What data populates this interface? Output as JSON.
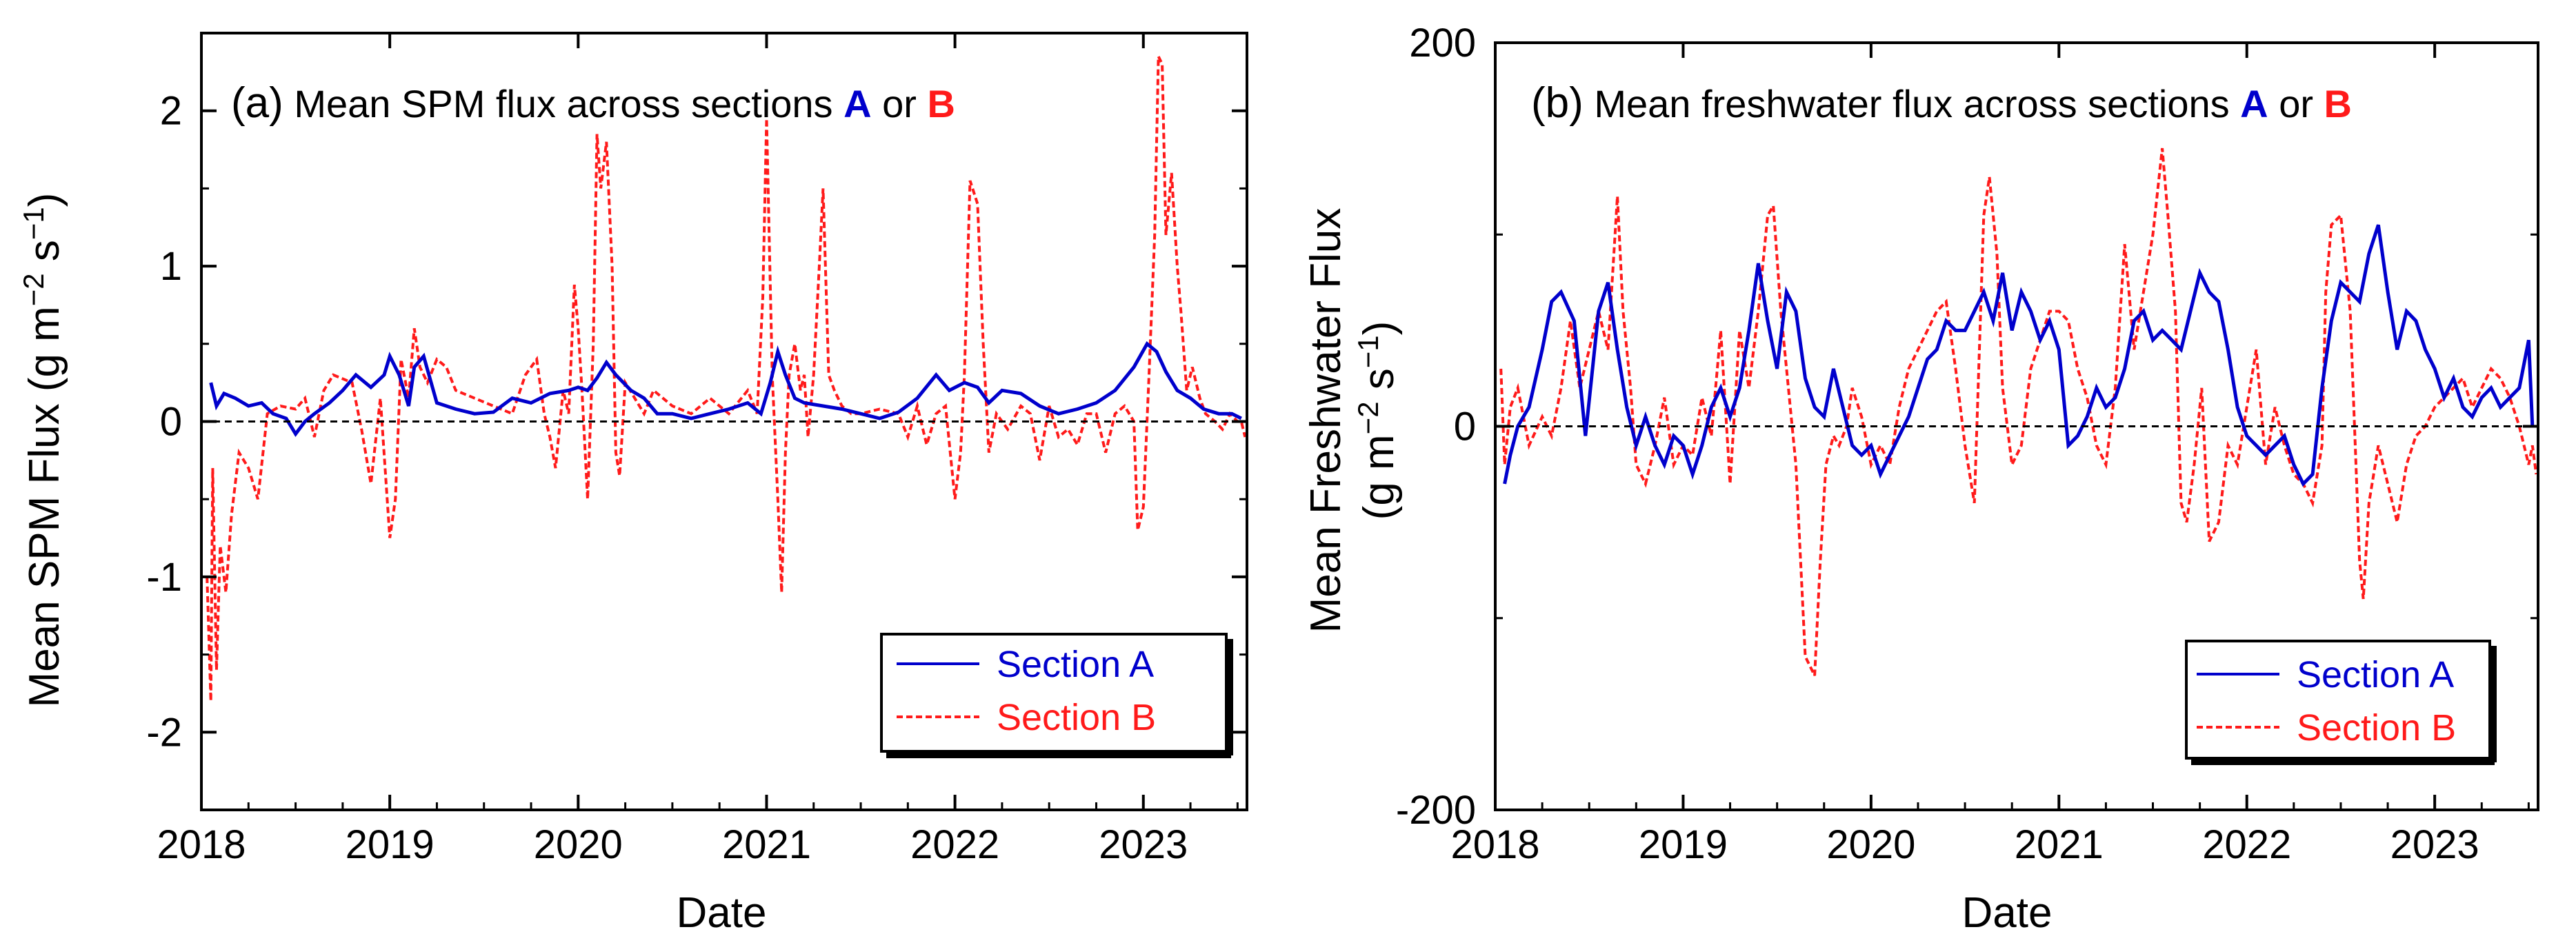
{
  "colors": {
    "section_a": "#0000cc",
    "section_b": "#ff1a1a",
    "axis": "#000000",
    "zero_line": "#000000"
  },
  "chart_data": [
    {
      "type": "line",
      "panel": "(a)",
      "title": "Mean SPM flux across sections",
      "title_a": "A",
      "title_or": "or",
      "title_b": "B",
      "xlabel": "Date",
      "ylabel": "Mean SPM Flux (g m",
      "ylabel_sup1": "−2",
      "ylabel_mid": " s",
      "ylabel_sup2": "−1",
      "ylabel_end": ")",
      "xlim": [
        2018.0,
        2023.55
      ],
      "ylim": [
        -2.5,
        2.5
      ],
      "xticks": [
        2018,
        2019,
        2020,
        2021,
        2022,
        2023
      ],
      "xtick_labels": [
        "2018",
        "2019",
        "2020",
        "2021",
        "2022",
        "2023"
      ],
      "yticks": [
        -2,
        -1,
        0,
        1,
        2
      ],
      "ytick_labels": [
        "-2",
        "-1",
        "0",
        "1",
        "2"
      ],
      "legend_position": "bottom-right",
      "series": [
        {
          "name": "Section A",
          "style": "solid",
          "x": [
            2018.05,
            2018.08,
            2018.12,
            2018.18,
            2018.25,
            2018.32,
            2018.38,
            2018.45,
            2018.5,
            2018.55,
            2018.6,
            2018.68,
            2018.75,
            2018.82,
            2018.9,
            2018.97,
            2019.0,
            2019.05,
            2019.1,
            2019.13,
            2019.18,
            2019.25,
            2019.35,
            2019.45,
            2019.55,
            2019.65,
            2019.75,
            2019.85,
            2019.95,
            2020.0,
            2020.05,
            2020.1,
            2020.15,
            2020.2,
            2020.28,
            2020.35,
            2020.42,
            2020.5,
            2020.6,
            2020.7,
            2020.8,
            2020.9,
            2020.97,
            2021.02,
            2021.06,
            2021.1,
            2021.15,
            2021.2,
            2021.3,
            2021.4,
            2021.5,
            2021.6,
            2021.7,
            2021.8,
            2021.9,
            2021.97,
            2022.05,
            2022.12,
            2022.18,
            2022.25,
            2022.35,
            2022.45,
            2022.55,
            2022.65,
            2022.75,
            2022.85,
            2022.95,
            2023.02,
            2023.07,
            2023.12,
            2023.18,
            2023.25,
            2023.32,
            2023.4,
            2023.47,
            2023.52
          ],
          "y": [
            0.25,
            0.1,
            0.18,
            0.15,
            0.1,
            0.12,
            0.05,
            0.02,
            -0.08,
            0.0,
            0.05,
            0.12,
            0.2,
            0.3,
            0.22,
            0.3,
            0.42,
            0.3,
            0.1,
            0.35,
            0.42,
            0.12,
            0.08,
            0.05,
            0.06,
            0.15,
            0.12,
            0.18,
            0.2,
            0.22,
            0.2,
            0.28,
            0.38,
            0.3,
            0.2,
            0.15,
            0.05,
            0.05,
            0.02,
            0.05,
            0.08,
            0.12,
            0.05,
            0.25,
            0.45,
            0.3,
            0.15,
            0.12,
            0.1,
            0.08,
            0.05,
            0.02,
            0.06,
            0.15,
            0.3,
            0.2,
            0.25,
            0.22,
            0.12,
            0.2,
            0.18,
            0.1,
            0.05,
            0.08,
            0.12,
            0.2,
            0.35,
            0.5,
            0.45,
            0.32,
            0.2,
            0.15,
            0.08,
            0.05,
            0.05,
            0.02
          ]
        },
        {
          "name": "Section B",
          "style": "dashed",
          "x": [
            2018.03,
            2018.05,
            2018.06,
            2018.08,
            2018.1,
            2018.13,
            2018.16,
            2018.2,
            2018.25,
            2018.3,
            2018.35,
            2018.42,
            2018.5,
            2018.55,
            2018.6,
            2018.65,
            2018.7,
            2018.8,
            2018.85,
            2018.9,
            2018.95,
            2019.0,
            2019.03,
            2019.06,
            2019.1,
            2019.13,
            2019.16,
            2019.2,
            2019.25,
            2019.3,
            2019.35,
            2019.45,
            2019.55,
            2019.65,
            2019.72,
            2019.78,
            2019.82,
            2019.85,
            2019.88,
            2019.92,
            2019.95,
            2019.98,
            2020.0,
            2020.02,
            2020.05,
            2020.08,
            2020.1,
            2020.12,
            2020.15,
            2020.18,
            2020.2,
            2020.22,
            2020.25,
            2020.3,
            2020.35,
            2020.4,
            2020.5,
            2020.6,
            2020.7,
            2020.8,
            2020.9,
            2020.95,
            2020.98,
            2021.0,
            2021.03,
            2021.06,
            2021.08,
            2021.1,
            2021.12,
            2021.15,
            2021.18,
            2021.2,
            2021.22,
            2021.25,
            2021.28,
            2021.3,
            2021.33,
            2021.36,
            2021.4,
            2021.45,
            2021.5,
            2021.6,
            2021.7,
            2021.75,
            2021.8,
            2021.85,
            2021.9,
            2021.95,
            2022.0,
            2022.03,
            2022.05,
            2022.08,
            2022.12,
            2022.15,
            2022.18,
            2022.22,
            2022.28,
            2022.35,
            2022.4,
            2022.45,
            2022.5,
            2022.55,
            2022.6,
            2022.65,
            2022.7,
            2022.75,
            2022.8,
            2022.85,
            2022.9,
            2022.95,
            2022.97,
            2023.0,
            2023.03,
            2023.06,
            2023.08,
            2023.1,
            2023.12,
            2023.15,
            2023.18,
            2023.2,
            2023.23,
            2023.26,
            2023.3,
            2023.33,
            2023.38,
            2023.42,
            2023.46,
            2023.5,
            2023.52,
            2023.54
          ],
          "y": [
            -1.0,
            -1.8,
            -0.3,
            -1.6,
            -0.8,
            -1.1,
            -0.6,
            -0.2,
            -0.3,
            -0.5,
            0.05,
            0.1,
            0.08,
            0.15,
            -0.1,
            0.2,
            0.3,
            0.25,
            -0.05,
            -0.4,
            0.15,
            -0.75,
            -0.5,
            0.4,
            0.15,
            0.6,
            0.35,
            0.25,
            0.4,
            0.35,
            0.2,
            0.15,
            0.1,
            0.05,
            0.3,
            0.4,
            0.05,
            -0.1,
            -0.3,
            0.2,
            0.05,
            0.88,
            0.6,
            0.2,
            -0.5,
            0.5,
            1.85,
            1.5,
            1.8,
            1.0,
            -0.2,
            -0.35,
            0.25,
            0.15,
            0.05,
            0.2,
            0.1,
            0.05,
            0.15,
            0.05,
            0.2,
            0.05,
            0.8,
            1.95,
            0.3,
            -0.5,
            -1.1,
            -0.2,
            0.3,
            0.5,
            0.2,
            0.3,
            -0.1,
            0.3,
            1.0,
            1.5,
            0.3,
            0.2,
            0.1,
            0.05,
            0.05,
            0.08,
            0.05,
            -0.1,
            0.1,
            -0.15,
            0.05,
            0.1,
            -0.5,
            -0.2,
            0.3,
            1.55,
            1.4,
            0.5,
            -0.2,
            0.05,
            -0.05,
            0.1,
            0.05,
            -0.25,
            0.1,
            -0.1,
            -0.05,
            -0.15,
            0.05,
            0.05,
            -0.2,
            0.05,
            0.1,
            0.0,
            -0.7,
            -0.55,
            0.3,
            1.2,
            2.35,
            2.3,
            1.2,
            1.6,
            1.0,
            0.7,
            0.2,
            0.35,
            0.15,
            0.05,
            0.0,
            -0.05,
            0.05,
            0.0,
            0.0,
            -0.1
          ]
        }
      ]
    },
    {
      "type": "line",
      "panel": "(b)",
      "title": "Mean freshwater flux across sections",
      "title_a": "A",
      "title_or": "or",
      "title_b": "B",
      "xlabel": "Date",
      "ylabel_line1": "Mean Freshwater Flux",
      "ylabel_line2": "(g m",
      "ylabel_sup1": "−2",
      "ylabel_mid": " s",
      "ylabel_sup2": "−1",
      "ylabel_end": ")",
      "xlim": [
        2018.0,
        2023.55
      ],
      "ylim": [
        -200,
        200
      ],
      "xticks": [
        2018,
        2019,
        2020,
        2021,
        2022,
        2023
      ],
      "xtick_labels": [
        "2018",
        "2019",
        "2020",
        "2021",
        "2022",
        "2023"
      ],
      "yticks": [
        -200,
        0,
        200
      ],
      "ytick_labels": [
        "-200",
        "0",
        "200"
      ],
      "legend_position": "bottom-right",
      "series": [
        {
          "name": "Section A",
          "style": "solid",
          "x": [
            2018.05,
            2018.08,
            2018.12,
            2018.18,
            2018.25,
            2018.3,
            2018.35,
            2018.42,
            2018.48,
            2018.55,
            2018.6,
            2018.65,
            2018.7,
            2018.75,
            2018.8,
            2018.85,
            2018.9,
            2018.95,
            2019.0,
            2019.05,
            2019.1,
            2019.15,
            2019.2,
            2019.25,
            2019.3,
            2019.35,
            2019.4,
            2019.45,
            2019.5,
            2019.55,
            2019.6,
            2019.65,
            2019.7,
            2019.75,
            2019.8,
            2019.85,
            2019.9,
            2019.95,
            2020.0,
            2020.05,
            2020.1,
            2020.15,
            2020.2,
            2020.25,
            2020.3,
            2020.35,
            2020.4,
            2020.45,
            2020.5,
            2020.55,
            2020.6,
            2020.65,
            2020.7,
            2020.75,
            2020.8,
            2020.85,
            2020.9,
            2020.95,
            2021.0,
            2021.05,
            2021.1,
            2021.15,
            2021.2,
            2021.25,
            2021.3,
            2021.35,
            2021.4,
            2021.45,
            2021.5,
            2021.55,
            2021.6,
            2021.65,
            2021.7,
            2021.75,
            2021.8,
            2021.85,
            2021.9,
            2021.95,
            2022.0,
            2022.05,
            2022.1,
            2022.15,
            2022.2,
            2022.25,
            2022.3,
            2022.35,
            2022.4,
            2022.45,
            2022.5,
            2022.55,
            2022.6,
            2022.65,
            2022.7,
            2022.75,
            2022.8,
            2022.85,
            2022.9,
            2022.95,
            2023.0,
            2023.05,
            2023.1,
            2023.15,
            2023.2,
            2023.25,
            2023.3,
            2023.35,
            2023.4,
            2023.45,
            2023.5,
            2023.52
          ],
          "y": [
            -30,
            -15,
            0,
            10,
            40,
            65,
            70,
            55,
            -5,
            60,
            75,
            40,
            10,
            -10,
            5,
            -10,
            -20,
            -5,
            -10,
            -25,
            -10,
            10,
            20,
            5,
            20,
            50,
            85,
            55,
            30,
            70,
            60,
            25,
            10,
            5,
            30,
            10,
            -10,
            -15,
            -10,
            -25,
            -15,
            -5,
            5,
            20,
            35,
            40,
            55,
            50,
            50,
            60,
            70,
            55,
            80,
            50,
            70,
            60,
            45,
            55,
            40,
            -10,
            -5,
            5,
            20,
            10,
            15,
            30,
            55,
            60,
            45,
            50,
            45,
            40,
            60,
            80,
            70,
            65,
            40,
            10,
            -5,
            -10,
            -15,
            -10,
            -5,
            -20,
            -30,
            -25,
            20,
            55,
            75,
            70,
            65,
            90,
            105,
            70,
            40,
            60,
            55,
            40,
            30,
            15,
            25,
            10,
            5,
            15,
            20,
            10,
            15,
            20,
            45,
            0
          ]
        },
        {
          "name": "Section B",
          "style": "dashed",
          "x": [
            2018.03,
            2018.05,
            2018.08,
            2018.12,
            2018.18,
            2018.25,
            2018.3,
            2018.35,
            2018.4,
            2018.45,
            2018.5,
            2018.55,
            2018.6,
            2018.65,
            2018.68,
            2018.72,
            2018.75,
            2018.8,
            2018.85,
            2018.9,
            2018.95,
            2019.0,
            2019.05,
            2019.1,
            2019.15,
            2019.2,
            2019.25,
            2019.3,
            2019.35,
            2019.4,
            2019.45,
            2019.48,
            2019.52,
            2019.55,
            2019.6,
            2019.65,
            2019.7,
            2019.73,
            2019.76,
            2019.8,
            2019.83,
            2019.87,
            2019.9,
            2019.95,
            2020.0,
            2020.05,
            2020.1,
            2020.15,
            2020.2,
            2020.25,
            2020.3,
            2020.35,
            2020.4,
            2020.45,
            2020.5,
            2020.55,
            2020.6,
            2020.63,
            2020.67,
            2020.7,
            2020.75,
            2020.8,
            2020.85,
            2020.9,
            2020.95,
            2021.0,
            2021.05,
            2021.1,
            2021.15,
            2021.2,
            2021.25,
            2021.3,
            2021.35,
            2021.4,
            2021.45,
            2021.5,
            2021.55,
            2021.58,
            2021.62,
            2021.65,
            2021.68,
            2021.72,
            2021.76,
            2021.8,
            2021.85,
            2021.9,
            2021.95,
            2022.0,
            2022.05,
            2022.1,
            2022.15,
            2022.2,
            2022.25,
            2022.3,
            2022.35,
            2022.4,
            2022.42,
            2022.45,
            2022.5,
            2022.55,
            2022.6,
            2022.62,
            2022.65,
            2022.7,
            2022.75,
            2022.8,
            2022.85,
            2022.9,
            2022.95,
            2023.0,
            2023.05,
            2023.1,
            2023.15,
            2023.2,
            2023.25,
            2023.3,
            2023.35,
            2023.4,
            2023.45,
            2023.5,
            2023.52,
            2023.54
          ],
          "y": [
            30,
            -20,
            10,
            20,
            -10,
            5,
            -5,
            20,
            55,
            20,
            40,
            60,
            40,
            120,
            60,
            20,
            -20,
            -30,
            -10,
            15,
            -20,
            -10,
            -15,
            15,
            -5,
            50,
            -30,
            50,
            20,
            60,
            110,
            115,
            60,
            30,
            -20,
            -120,
            -130,
            -70,
            -20,
            -5,
            -10,
            0,
            20,
            5,
            -20,
            -10,
            -20,
            10,
            30,
            40,
            50,
            60,
            65,
            30,
            -10,
            -40,
            110,
            130,
            90,
            20,
            -20,
            -10,
            30,
            45,
            60,
            60,
            55,
            30,
            15,
            -10,
            -20,
            20,
            95,
            40,
            70,
            100,
            145,
            110,
            60,
            -40,
            -50,
            -20,
            20,
            -60,
            -50,
            -10,
            -20,
            10,
            40,
            -20,
            10,
            -10,
            -25,
            -30,
            -40,
            -10,
            70,
            105,
            110,
            60,
            -70,
            -90,
            -40,
            -10,
            -30,
            -50,
            -20,
            -5,
            0,
            10,
            15,
            20,
            25,
            10,
            20,
            30,
            25,
            15,
            0,
            -20,
            -10,
            -25
          ]
        }
      ]
    }
  ]
}
